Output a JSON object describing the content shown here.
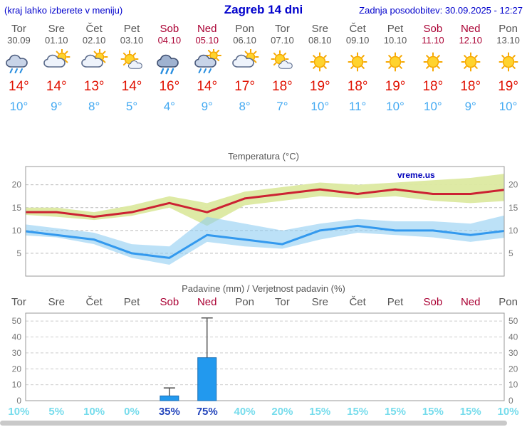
{
  "header": {
    "left_note": "(kraj lahko izberete v meniju)",
    "title": "Zagreb 14 dni",
    "last_update": "Zadnja posodobitev: 30.09.2025 - 12:27"
  },
  "colors": {
    "header_blue": "#0000cc",
    "weekday_text": "#555555",
    "weekend_text": "#aa0033",
    "temp_high": "#e01000",
    "temp_low": "#45aaf2",
    "max_line": "#cc2233",
    "max_band": "#dce9a0",
    "min_line": "#3399ee",
    "min_band": "#8fcdf2",
    "bar_fill": "#2299ee",
    "bar_stroke": "#1a6fb5",
    "whisker": "#555555",
    "prob_normal": "#76dcec",
    "prob_strong": "#2244bb",
    "grid": "#bbbbbb",
    "frame": "#999999",
    "red_dashed": "#e04444"
  },
  "days": [
    {
      "name": "Tor",
      "date": "30.09",
      "icon": "rain",
      "high": "14°",
      "low": "10°",
      "weekend": false
    },
    {
      "name": "Sre",
      "date": "01.10",
      "icon": "partly-cloudy",
      "high": "14°",
      "low": "9°",
      "weekend": false
    },
    {
      "name": "Čet",
      "date": "02.10",
      "icon": "partly-cloudy",
      "high": "13°",
      "low": "8°",
      "weekend": false
    },
    {
      "name": "Pet",
      "date": "03.10",
      "icon": "mostly-sunny",
      "high": "14°",
      "low": "5°",
      "weekend": false
    },
    {
      "name": "Sob",
      "date": "04.10",
      "icon": "heavy-rain",
      "high": "16°",
      "low": "4°",
      "weekend": true
    },
    {
      "name": "Ned",
      "date": "05.10",
      "icon": "sun-rain",
      "high": "14°",
      "low": "9°",
      "weekend": true
    },
    {
      "name": "Pon",
      "date": "06.10",
      "icon": "partly-cloudy",
      "high": "17°",
      "low": "8°",
      "weekend": false
    },
    {
      "name": "Tor",
      "date": "07.10",
      "icon": "mostly-sunny",
      "high": "18°",
      "low": "7°",
      "weekend": false
    },
    {
      "name": "Sre",
      "date": "08.10",
      "icon": "sunny",
      "high": "19°",
      "low": "10°",
      "weekend": false
    },
    {
      "name": "Čet",
      "date": "09.10",
      "icon": "sunny",
      "high": "18°",
      "low": "11°",
      "weekend": false
    },
    {
      "name": "Pet",
      "date": "10.10",
      "icon": "sunny",
      "high": "19°",
      "low": "10°",
      "weekend": false
    },
    {
      "name": "Sob",
      "date": "11.10",
      "icon": "sunny",
      "high": "18°",
      "low": "10°",
      "weekend": true
    },
    {
      "name": "Ned",
      "date": "12.10",
      "icon": "sunny",
      "high": "18°",
      "low": "9°",
      "weekend": true
    },
    {
      "name": "Pon",
      "date": "13.10",
      "icon": "sunny",
      "high": "19°",
      "low": "10°",
      "weekend": false
    }
  ],
  "chart_data": [
    {
      "type": "line",
      "title": "Temperatura (°C)",
      "watermark": "vreme.us",
      "categories": [
        "Tor",
        "Sre",
        "Čet",
        "Pet",
        "Sob",
        "Ned",
        "Pon",
        "Tor",
        "Sre",
        "Čet",
        "Pet",
        "Sob",
        "Ned",
        "Pon"
      ],
      "ylim": [
        0,
        24
      ],
      "yticks": [
        5,
        10,
        15,
        20
      ],
      "grid": "dashed",
      "series": [
        {
          "name": "max-temp",
          "color": "#cc2233",
          "values": [
            14,
            14,
            13,
            14,
            16,
            14,
            17,
            18,
            19,
            18,
            19,
            18,
            18,
            19
          ]
        },
        {
          "name": "min-temp",
          "color": "#3399ee",
          "values": [
            10,
            9,
            8,
            5,
            4,
            9,
            8,
            7,
            10,
            11,
            10,
            10,
            9,
            10
          ]
        }
      ],
      "bands": [
        {
          "name": "max-range",
          "fill": "#dce9a0",
          "opacity": 0.95,
          "upper": [
            15,
            15,
            14,
            15.5,
            17.5,
            16,
            18.5,
            19.5,
            20.5,
            20,
            20.5,
            21,
            21.5,
            22.5
          ],
          "lower": [
            13.5,
            13,
            12.3,
            13.2,
            15,
            11,
            15.5,
            16.5,
            17.5,
            17,
            17.5,
            16.5,
            16,
            16.5
          ]
        },
        {
          "name": "min-range",
          "fill": "#8fcdf2",
          "opacity": 0.6,
          "upper": [
            11.5,
            10.5,
            9.5,
            7,
            6.5,
            13,
            11.5,
            10,
            11.5,
            12.5,
            12,
            12,
            11.5,
            13.5
          ],
          "lower": [
            9,
            8.5,
            7,
            4,
            2.5,
            7.5,
            6.5,
            6,
            8,
            9.5,
            9,
            8.5,
            7.5,
            8.5
          ]
        }
      ]
    },
    {
      "type": "bar",
      "title": "Padavine (mm) / Verjetnost padavin (%)",
      "categories": [
        "Tor",
        "Sre",
        "Čet",
        "Pet",
        "Sob",
        "Ned",
        "Pon",
        "Tor",
        "Sre",
        "Čet",
        "Pet",
        "Sob",
        "Ned",
        "Pon"
      ],
      "values": [
        0,
        0,
        0,
        0,
        3,
        27,
        0,
        0,
        0,
        0,
        0,
        0,
        0,
        0
      ],
      "whisker_max": [
        0,
        0,
        0,
        0,
        8,
        52,
        0,
        0,
        0,
        0,
        0,
        0,
        0,
        0
      ],
      "ylim": [
        0,
        55
      ],
      "yticks": [
        0,
        10,
        20,
        30,
        40,
        50
      ],
      "probabilities": [
        "10%",
        "5%",
        "10%",
        "0%",
        "35%",
        "75%",
        "40%",
        "20%",
        "15%",
        "15%",
        "15%",
        "15%",
        "15%",
        "10%"
      ],
      "prob_strong": [
        false,
        false,
        false,
        false,
        true,
        true,
        false,
        false,
        false,
        false,
        false,
        false,
        false,
        false
      ]
    }
  ]
}
